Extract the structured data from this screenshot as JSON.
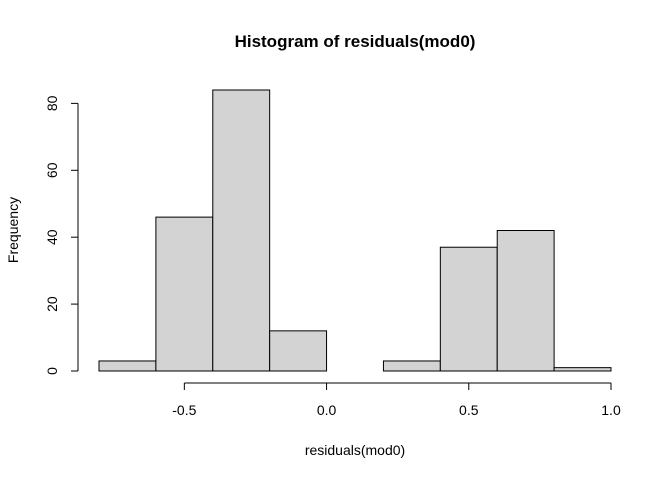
{
  "chart_data": {
    "type": "bar",
    "title": "Histogram of residuals(mod0)",
    "xlabel": "residuals(mod0)",
    "ylabel": "Frequency",
    "bin_edges": [
      -0.8,
      -0.6,
      -0.4,
      -0.2,
      0.0,
      0.2,
      0.4,
      0.6,
      0.8,
      1.0
    ],
    "counts": [
      3,
      46,
      84,
      12,
      0,
      3,
      37,
      42,
      1
    ],
    "xlim": [
      -0.8,
      1.0
    ],
    "ylim": [
      0,
      84
    ],
    "x_ticks": [
      -0.5,
      0.0,
      0.5,
      1.0
    ],
    "x_tick_labels": [
      "-0.5",
      "0.0",
      "0.5",
      "1.0"
    ],
    "y_ticks": [
      0,
      20,
      40,
      60,
      80
    ],
    "y_tick_labels": [
      "0",
      "20",
      "40",
      "60",
      "80"
    ],
    "bar_color": "#d3d3d3",
    "grid": false,
    "legend": "none"
  }
}
